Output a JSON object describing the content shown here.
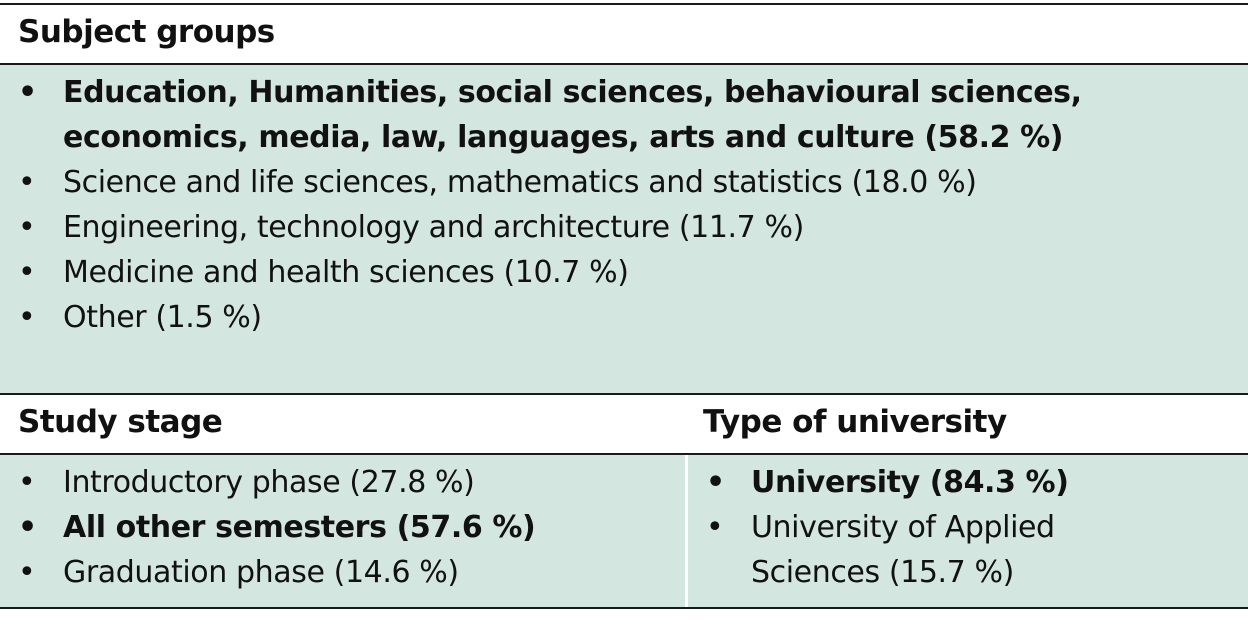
{
  "subject_groups": {
    "header": "Subject groups",
    "items": [
      {
        "text": "Education, Humanities, social sciences, behavioural sciences, economics, media, law, languages, arts and culture (58.2 %)",
        "bold": true
      },
      {
        "text": "Science and life sciences, mathematics and statistics (18.0 %)",
        "bold": false
      },
      {
        "text": "Engineering, technology and architecture (11.7 %)",
        "bold": false
      },
      {
        "text": "Medicine and health sciences (10.7 %)",
        "bold": false
      },
      {
        "text": "Other (1.5 %)",
        "bold": false
      }
    ]
  },
  "study_stage": {
    "header": "Study stage",
    "items": [
      {
        "text": "Introductory phase (27.8 %)",
        "bold": false
      },
      {
        "text": "All other semesters (57.6 %)",
        "bold": true
      },
      {
        "text": "Graduation phase (14.6 %)",
        "bold": false
      }
    ]
  },
  "type_of_university": {
    "header": "Type of university",
    "items": [
      {
        "text": "University (84.3 %)",
        "bold": true
      },
      {
        "text": "University of Applied Sciences (15.7 %)",
        "bold": false
      }
    ]
  },
  "bullet_glyph": "•",
  "colors": {
    "body_background": "#d3e6df",
    "header_background": "#ffffff",
    "rule": "#1a1a1a"
  }
}
